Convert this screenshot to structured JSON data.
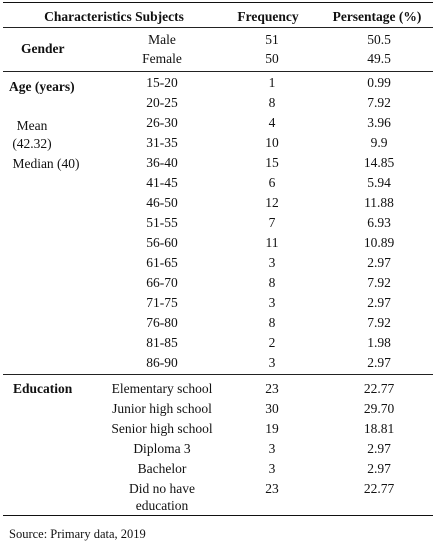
{
  "header": {
    "col1": "Characteristics Subjects",
    "col3": "Frequency",
    "col4": "Persentage (%)"
  },
  "gender": {
    "label": "Gender",
    "rows": [
      {
        "name": "Male",
        "freq": "51",
        "pct": "50.5"
      },
      {
        "name": "Female",
        "freq": "50",
        "pct": "49.5"
      }
    ]
  },
  "age": {
    "label": "Age (years)",
    "mean_label": "Mean",
    "mean_value": "(42.32)",
    "median": "Median (40)",
    "rows": [
      {
        "name": "15-20",
        "freq": "1",
        "pct": "0.99"
      },
      {
        "name": "20-25",
        "freq": "8",
        "pct": "7.92"
      },
      {
        "name": "26-30",
        "freq": "4",
        "pct": "3.96"
      },
      {
        "name": "31-35",
        "freq": "10",
        "pct": "9.9"
      },
      {
        "name": "36-40",
        "freq": "15",
        "pct": "14.85"
      },
      {
        "name": "41-45",
        "freq": "6",
        "pct": "5.94"
      },
      {
        "name": "46-50",
        "freq": "12",
        "pct": "11.88"
      },
      {
        "name": "51-55",
        "freq": "7",
        "pct": "6.93"
      },
      {
        "name": "56-60",
        "freq": "11",
        "pct": "10.89"
      },
      {
        "name": "61-65",
        "freq": "3",
        "pct": "2.97"
      },
      {
        "name": "66-70",
        "freq": "8",
        "pct": "7.92"
      },
      {
        "name": "71-75",
        "freq": "3",
        "pct": "2.97"
      },
      {
        "name": "76-80",
        "freq": "8",
        "pct": "7.92"
      },
      {
        "name": "81-85",
        "freq": "2",
        "pct": "1.98"
      },
      {
        "name": "86-90",
        "freq": "3",
        "pct": "2.97"
      }
    ]
  },
  "education": {
    "label": "Education",
    "rows": [
      {
        "name": "Elementary school",
        "freq": "23",
        "pct": "22.77"
      },
      {
        "name": "Junior high school",
        "freq": "30",
        "pct": "29.70"
      },
      {
        "name": "Senior high school",
        "freq": "19",
        "pct": "18.81"
      },
      {
        "name": "Diploma 3",
        "freq": "3",
        "pct": "2.97"
      },
      {
        "name": "Bachelor",
        "freq": "3",
        "pct": "2.97"
      },
      {
        "name": "Did no have",
        "name2": "education",
        "freq": "23",
        "pct": "22.77"
      }
    ]
  },
  "source": "Source: Primary data, 2019"
}
